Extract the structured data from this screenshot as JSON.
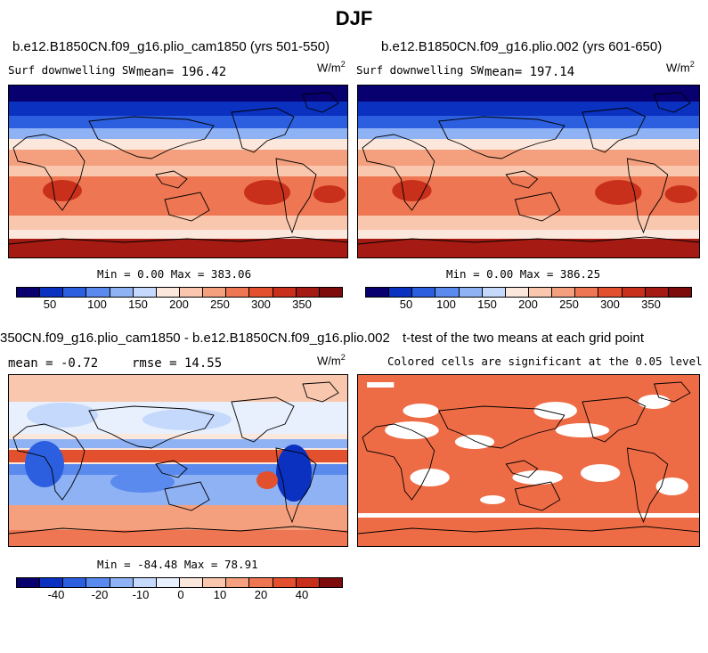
{
  "chart_data": [
    {
      "type": "heatmap",
      "title": "DJF",
      "panel_title": "b.e12.B1850CN.f09_g16.plio_cam1850 (yrs 501-550)",
      "variable": "Surf downwelling SW",
      "mean_label": "mean= 196.42",
      "mean": 196.42,
      "units": "W/m",
      "units_exp": "2",
      "min": 0.0,
      "max": 383.06,
      "minmax_text": "Min =   0.00 Max = 383.06",
      "colorbar_ticks": [
        "50",
        "100",
        "150",
        "200",
        "250",
        "300",
        "350"
      ],
      "colorbar_colors": [
        "#08006e",
        "#0b31c0",
        "#2c5fe0",
        "#5a8aee",
        "#8fb2f5",
        "#c4d9fb",
        "#fbe7dc",
        "#f9c7ad",
        "#f4a07e",
        "#ee7652",
        "#e2502e",
        "#c8301c",
        "#a51a12",
        "#7d0b0b"
      ]
    },
    {
      "type": "heatmap",
      "panel_title": "b.e12.B1850CN.f09_g16.plio.002 (yrs 601-650)",
      "variable": "Surf downwelling SW",
      "mean_label": "mean= 197.14",
      "mean": 197.14,
      "units": "W/m",
      "units_exp": "2",
      "min": 0.0,
      "max": 386.25,
      "minmax_text": "Min =   0.00 Max = 386.25",
      "colorbar_ticks": [
        "50",
        "100",
        "150",
        "200",
        "250",
        "300",
        "350"
      ]
    },
    {
      "type": "heatmap",
      "panel_title": "350CN.f09_g16.plio_cam1850 - b.e12.B1850CN.f09_g16.plio.002",
      "mean_label": "mean =  -0.72",
      "mean": -0.72,
      "rmse_label": "rmse =  14.55",
      "rmse": 14.55,
      "units": "W/m",
      "units_exp": "2",
      "min": -84.48,
      "max": 78.91,
      "minmax_text": "Min = -84.48 Max =  78.91",
      "colorbar_ticks": [
        "-40",
        "-20",
        "-10",
        "0",
        "10",
        "20",
        "40"
      ],
      "colorbar_colors": [
        "#08006e",
        "#0b31c0",
        "#2c5fe0",
        "#5a8aee",
        "#8fb2f5",
        "#c4d9fb",
        "#e8f0fd",
        "#fbe7dc",
        "#f9c7ad",
        "#f4a07e",
        "#ee7652",
        "#e2502e",
        "#c8301c",
        "#7d0b0b"
      ]
    },
    {
      "type": "heatmap",
      "panel_title": "t-test of the two means at each grid point",
      "subtitle": "Colored cells are significant at the 0.05 level",
      "significant_color": "#ee6c45"
    }
  ]
}
